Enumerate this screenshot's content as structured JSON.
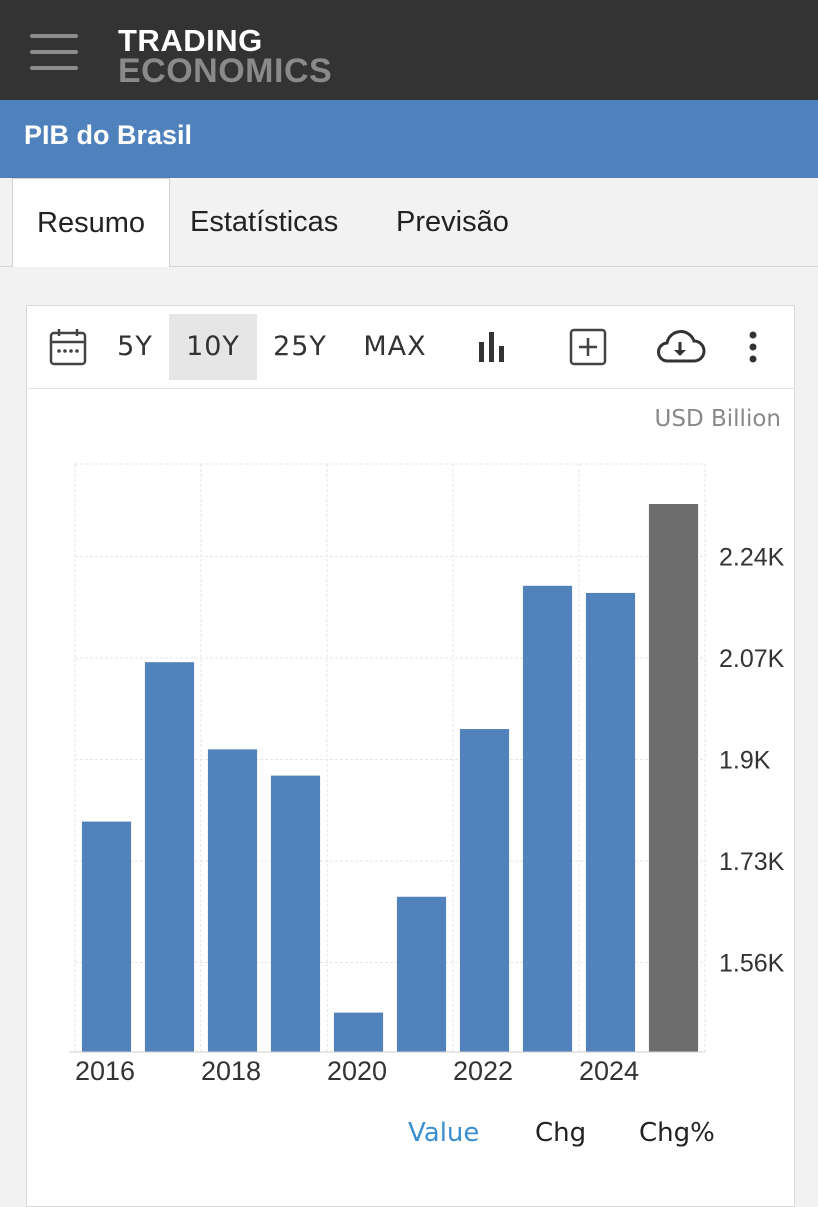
{
  "header": {
    "logo_line1": "TRADING",
    "logo_line2": "ECONOMICS",
    "menu_icon": "hamburger-icon"
  },
  "page": {
    "title": "PIB do Brasil"
  },
  "tabs": [
    {
      "label": "Resumo",
      "active": true
    },
    {
      "label": "Estatísticas",
      "active": false
    },
    {
      "label": "Previsão",
      "active": false
    }
  ],
  "toolbar": {
    "calendar_icon": "calendar-icon",
    "ranges": [
      "5Y",
      "10Y",
      "25Y",
      "MAX"
    ],
    "selected_range": "10Y",
    "chart_type_icon": "bar-chart-icon",
    "add_icon": "plus-square-icon",
    "download_icon": "cloud-download-icon",
    "more_icon": "more-vertical-icon"
  },
  "legend": {
    "items": [
      "Value",
      "Chg",
      "Chg%"
    ],
    "active": "Value",
    "active_color": "#3a8fd0"
  },
  "chart_data": {
    "type": "bar",
    "unit": "USD Billion",
    "categories": [
      "2016",
      "2017",
      "2018",
      "2019",
      "2020",
      "2021",
      "2022",
      "2023",
      "2024",
      "2025"
    ],
    "x_tick_labels": [
      "2016",
      "2018",
      "2020",
      "2022",
      "2024"
    ],
    "values": [
      1796,
      2063,
      1917,
      1873,
      1476,
      1670,
      1951,
      2191,
      2179,
      2328
    ],
    "forecast_index": 9,
    "y_ticks": [
      1560,
      1730,
      1900,
      2070,
      2240
    ],
    "y_tick_labels": [
      "1.56K",
      "1.73K",
      "1.9K",
      "2.07K",
      "2.24K"
    ],
    "ylim": [
      1410,
      2395
    ],
    "y_axis_position": "right",
    "grid": true,
    "colors": {
      "bar": "#5182bb",
      "forecast": "#6d6d6d",
      "grid": "#e5e5e5"
    }
  }
}
